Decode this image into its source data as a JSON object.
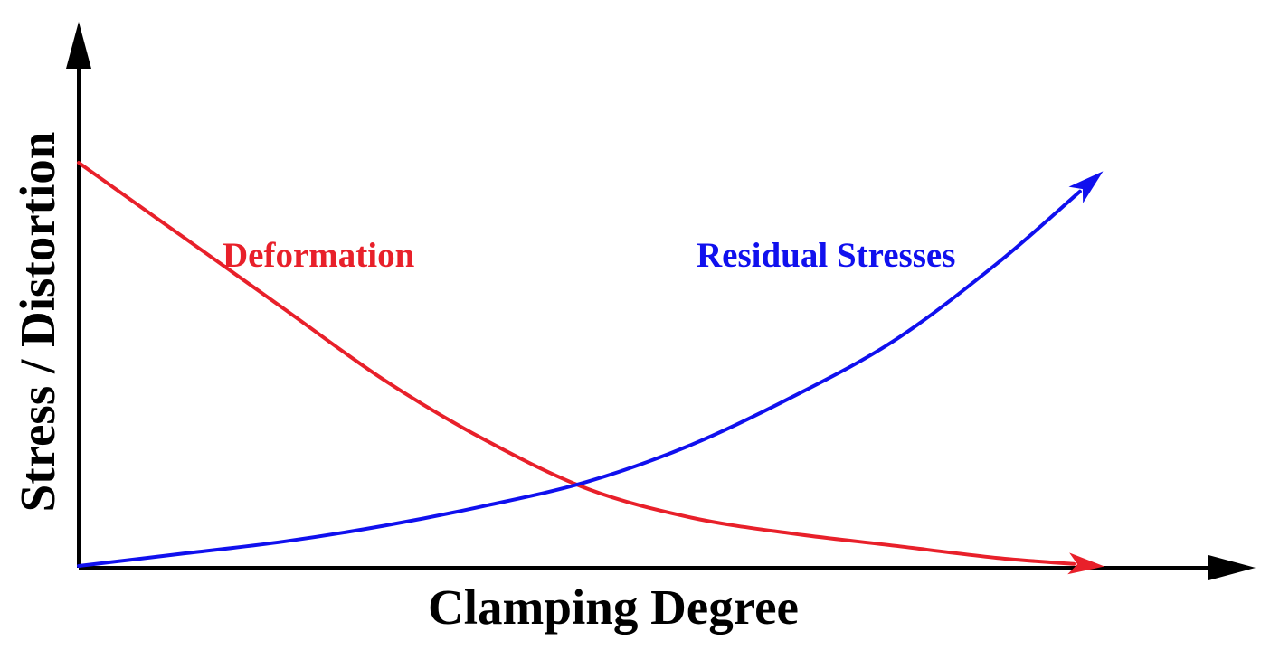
{
  "chart_data": {
    "type": "line",
    "title": "",
    "xlabel": "Clamping Degree",
    "ylabel": "Stress / Distortion",
    "xlim": [
      0,
      1
    ],
    "ylim": [
      0,
      1
    ],
    "grid": false,
    "legend": "none",
    "ticks": "none",
    "series": [
      {
        "name": "Deformation",
        "color": "#e8202a",
        "x": [
          0.0,
          0.1,
          0.2,
          0.3,
          0.4,
          0.5,
          0.6,
          0.7,
          0.8,
          0.9,
          1.0
        ],
        "y": [
          1.0,
          0.82,
          0.64,
          0.46,
          0.31,
          0.19,
          0.12,
          0.08,
          0.05,
          0.02,
          0.0
        ]
      },
      {
        "name": "Residual Stresses",
        "color": "#1010ee",
        "x": [
          0.0,
          0.1,
          0.2,
          0.3,
          0.4,
          0.5,
          0.6,
          0.7,
          0.8,
          0.9,
          1.0
        ],
        "y": [
          0.0,
          0.03,
          0.06,
          0.1,
          0.15,
          0.21,
          0.3,
          0.42,
          0.56,
          0.75,
          0.97
        ]
      }
    ]
  }
}
